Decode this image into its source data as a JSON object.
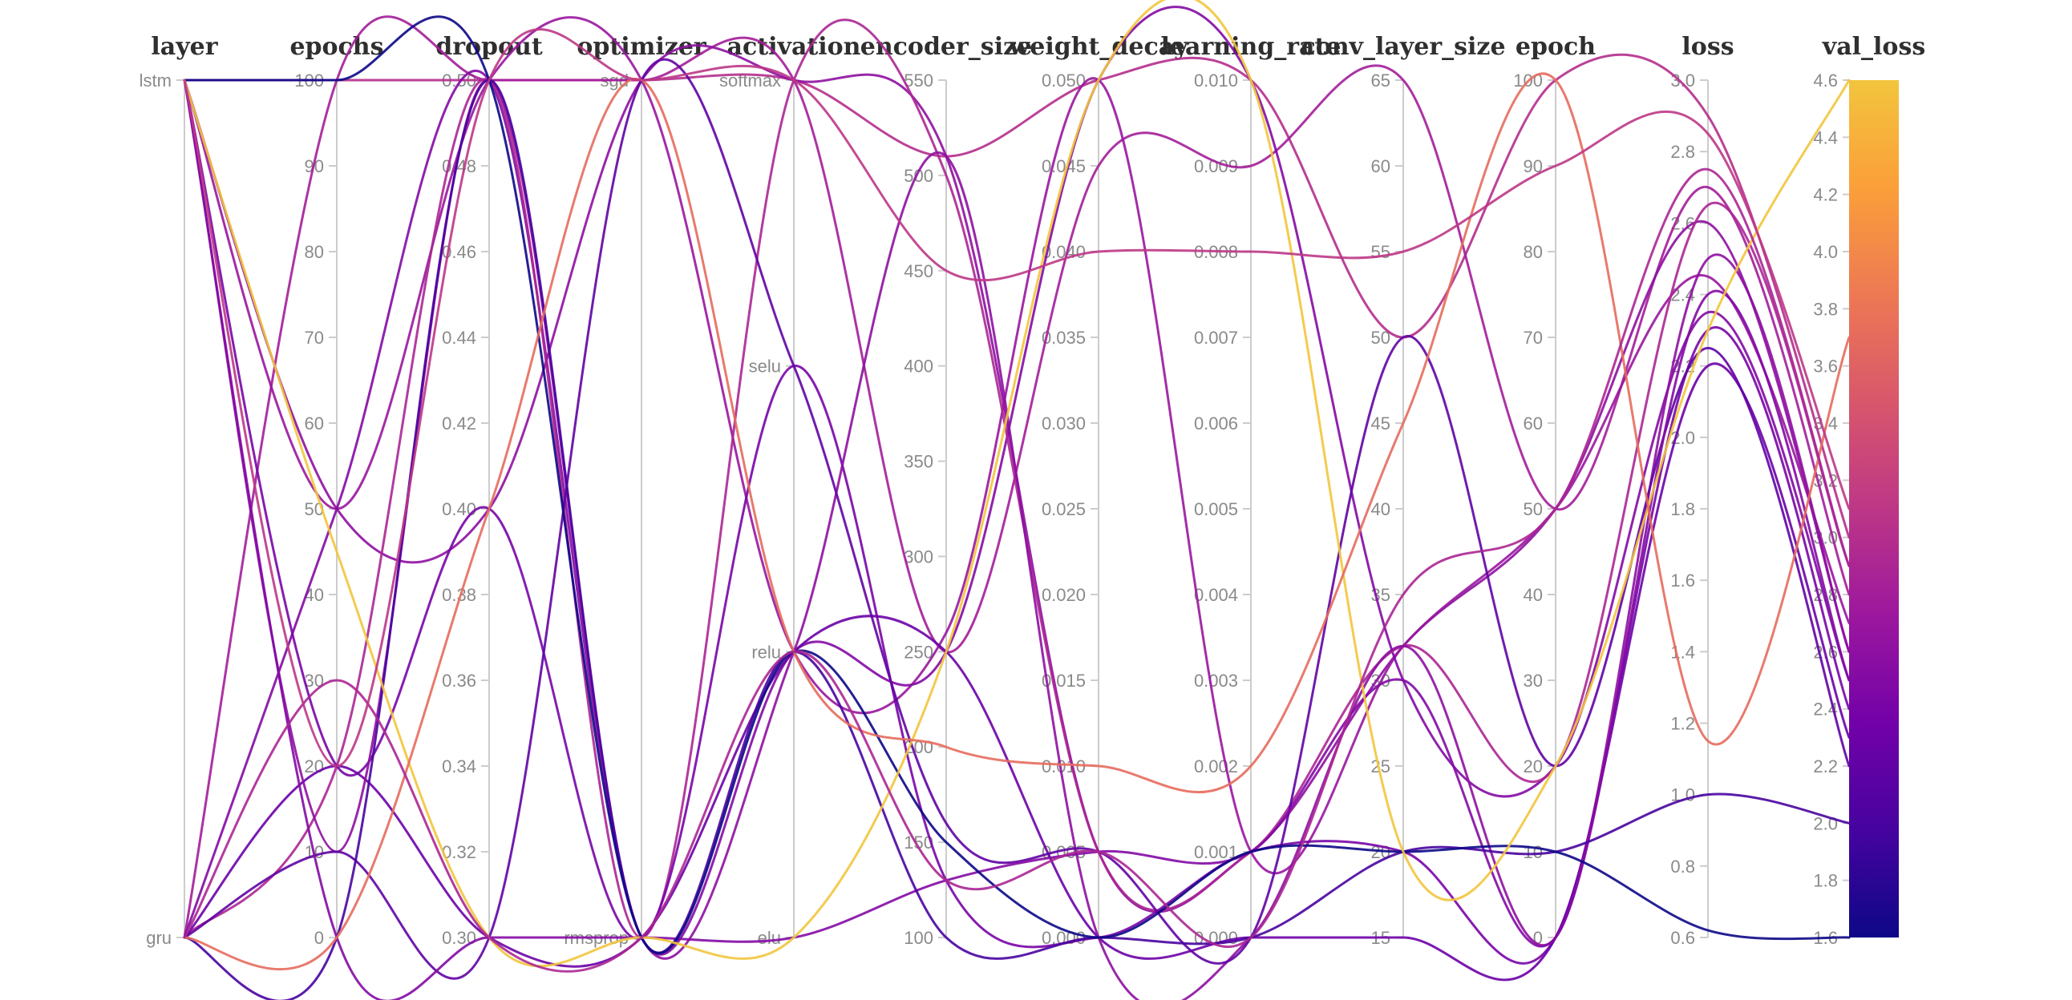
{
  "chart_data": {
    "type": "parallel-coordinates",
    "title": "",
    "axes": [
      {
        "name": "layer",
        "type": "categorical",
        "categories": [
          "lstm",
          "gru"
        ]
      },
      {
        "name": "epochs",
        "type": "numeric",
        "min": 0,
        "max": 100,
        "ticks": [
          "100",
          "90",
          "80",
          "70",
          "60",
          "50",
          "40",
          "30",
          "20",
          "10",
          "0"
        ]
      },
      {
        "name": "dropout",
        "type": "numeric",
        "min": 0.3,
        "max": 0.5,
        "ticks": [
          "0.50",
          "0.48",
          "0.46",
          "0.44",
          "0.42",
          "0.40",
          "0.38",
          "0.36",
          "0.34",
          "0.32",
          "0.30"
        ]
      },
      {
        "name": "optimizer",
        "type": "categorical",
        "categories": [
          "sgd",
          "rmsprop"
        ]
      },
      {
        "name": "activation",
        "type": "categorical",
        "categories": [
          "softmax",
          "selu",
          "relu",
          "elu"
        ]
      },
      {
        "name": "encoder_size",
        "type": "numeric",
        "min": 100,
        "max": 550,
        "ticks": [
          "550",
          "500",
          "450",
          "400",
          "350",
          "300",
          "250",
          "200",
          "150",
          "100"
        ]
      },
      {
        "name": "weight_decay",
        "type": "numeric",
        "min": 0.0,
        "max": 0.05,
        "ticks": [
          "0.050",
          "0.045",
          "0.040",
          "0.035",
          "0.030",
          "0.025",
          "0.020",
          "0.015",
          "0.010",
          "0.005",
          "0.000"
        ]
      },
      {
        "name": "learning_rate",
        "type": "numeric",
        "min": 0.0,
        "max": 0.01,
        "ticks": [
          "0.010",
          "0.009",
          "0.008",
          "0.007",
          "0.006",
          "0.005",
          "0.004",
          "0.003",
          "0.002",
          "0.001",
          "0.000"
        ]
      },
      {
        "name": "conv_layer_size",
        "type": "numeric",
        "min": 15,
        "max": 65,
        "ticks": [
          "65",
          "60",
          "55",
          "50",
          "45",
          "40",
          "35",
          "30",
          "25",
          "20",
          "15"
        ]
      },
      {
        "name": "epoch",
        "type": "numeric",
        "min": 0,
        "max": 100,
        "ticks": [
          "100",
          "90",
          "80",
          "70",
          "60",
          "50",
          "40",
          "30",
          "20",
          "10",
          "0"
        ]
      },
      {
        "name": "loss",
        "type": "numeric",
        "min": 0.6,
        "max": 3.0,
        "ticks": [
          "3.0",
          "2.8",
          "2.6",
          "2.4",
          "2.2",
          "2.0",
          "1.8",
          "1.6",
          "1.4",
          "1.2",
          "1.0",
          "0.8",
          "0.6"
        ]
      }
    ],
    "color_axis": {
      "name": "val_loss",
      "min": 1.6,
      "max": 4.6,
      "ticks": [
        "4.6",
        "4.4",
        "4.2",
        "4.0",
        "3.8",
        "3.6",
        "3.4",
        "3.2",
        "3.0",
        "2.8",
        "2.6",
        "2.4",
        "2.2",
        "2.0",
        "1.8",
        "1.6"
      ],
      "stops": [
        "#0d0887",
        "#46039f",
        "#7201a8",
        "#9c179e",
        "#bd3786",
        "#d8576b",
        "#ed7953",
        "#fb9f3a",
        "#f2c53d"
      ]
    },
    "runs": [
      {
        "layer": "lstm",
        "epochs": 100,
        "dropout": 0.5,
        "optimizer": "sgd",
        "activation": "softmax",
        "encoder_size": 510,
        "weight_decay": 0.05,
        "learning_rate": 0.01,
        "conv_layer_size": 50,
        "epoch": 100,
        "loss": 2.9,
        "val_loss": 3.0
      },
      {
        "layer": "gru",
        "epochs": 100,
        "dropout": 0.5,
        "optimizer": "sgd",
        "activation": "softmax",
        "encoder_size": 250,
        "weight_decay": 0.045,
        "learning_rate": 0.009,
        "conv_layer_size": 65,
        "epoch": 50,
        "loss": 2.7,
        "val_loss": 2.8
      },
      {
        "layer": "lstm",
        "epochs": 50,
        "dropout": 0.4,
        "optimizer": "sgd",
        "activation": "softmax",
        "encoder_size": 510,
        "weight_decay": 0.005,
        "learning_rate": 0.001,
        "conv_layer_size": 32,
        "epoch": 50,
        "loss": 2.6,
        "val_loss": 2.6
      },
      {
        "layer": "lstm",
        "epochs": 50,
        "dropout": 0.5,
        "optimizer": "sgd",
        "activation": "relu",
        "encoder_size": 260,
        "weight_decay": 0.05,
        "learning_rate": 0.001,
        "conv_layer_size": 32,
        "epoch": 50,
        "loss": 2.45,
        "val_loss": 2.7
      },
      {
        "layer": "gru",
        "epochs": 50,
        "dropout": 0.5,
        "optimizer": "rmsprop",
        "activation": "relu",
        "encoder_size": 250,
        "weight_decay": 0.05,
        "learning_rate": 0.01,
        "conv_layer_size": 30,
        "epoch": 20,
        "loss": 2.35,
        "val_loss": 2.5
      },
      {
        "layer": "gru",
        "epochs": 20,
        "dropout": 0.5,
        "optimizer": "rmsprop",
        "activation": "softmax",
        "encoder_size": 500,
        "weight_decay": 0.005,
        "learning_rate": 0.001,
        "conv_layer_size": 32,
        "epoch": 20,
        "loss": 2.65,
        "val_loss": 2.9
      },
      {
        "layer": "lstm",
        "epochs": 20,
        "dropout": 0.4,
        "optimizer": "rmsprop",
        "activation": "selu",
        "encoder_size": 130,
        "weight_decay": 0.0,
        "learning_rate": 0.001,
        "conv_layer_size": 20,
        "epoch": 0,
        "loss": 2.3,
        "val_loss": 2.4
      },
      {
        "layer": "gru",
        "epochs": 20,
        "dropout": 0.3,
        "optimizer": "rmsprop",
        "activation": "relu",
        "encoder_size": 250,
        "weight_decay": 0.0,
        "learning_rate": 0.0,
        "conv_layer_size": 15,
        "epoch": 0,
        "loss": 2.2,
        "val_loss": 2.3
      },
      {
        "layer": "lstm",
        "epochs": 10,
        "dropout": 0.5,
        "optimizer": "rmsprop",
        "activation": "relu",
        "encoder_size": 510,
        "weight_decay": 0.0,
        "learning_rate": 0.0,
        "conv_layer_size": 32,
        "epoch": 0,
        "loss": 2.5,
        "val_loss": 2.6
      },
      {
        "layer": "gru",
        "epochs": 10,
        "dropout": 0.3,
        "optimizer": "sgd",
        "activation": "selu",
        "encoder_size": 160,
        "weight_decay": 0.005,
        "learning_rate": 0.0,
        "conv_layer_size": 50,
        "epoch": 20,
        "loss": 2.25,
        "val_loss": 2.2
      },
      {
        "layer": "lstm",
        "epochs": 0,
        "dropout": 0.3,
        "optimizer": "rmsprop",
        "activation": "elu",
        "encoder_size": 130,
        "weight_decay": 0.005,
        "learning_rate": 0.001,
        "conv_layer_size": 30,
        "epoch": 0,
        "loss": 2.4,
        "val_loss": 2.5
      },
      {
        "layer": "gru",
        "epochs": 0,
        "dropout": 0.5,
        "optimizer": "rmsprop",
        "activation": "relu",
        "encoder_size": 100,
        "weight_decay": 0.0,
        "learning_rate": 0.0,
        "conv_layer_size": 20,
        "epoch": 10,
        "loss": 1.0,
        "val_loss": 2.0
      },
      {
        "layer": "lstm",
        "epochs": 100,
        "dropout": 0.5,
        "optimizer": "rmsprop",
        "activation": "relu",
        "encoder_size": 150,
        "weight_decay": 0.0,
        "learning_rate": 0.001,
        "conv_layer_size": 20,
        "epoch": 10,
        "loss": 0.62,
        "val_loss": 1.6
      },
      {
        "layer": "lstm",
        "epochs": 45,
        "dropout": 0.3,
        "optimizer": "rmsprop",
        "activation": "elu",
        "encoder_size": 250,
        "weight_decay": 0.05,
        "learning_rate": 0.01,
        "conv_layer_size": 20,
        "epoch": 20,
        "loss": 2.3,
        "val_loss": 4.6
      },
      {
        "layer": "gru",
        "epochs": 0,
        "dropout": 0.4,
        "optimizer": "sgd",
        "activation": "relu",
        "encoder_size": 200,
        "weight_decay": 0.01,
        "learning_rate": 0.002,
        "conv_layer_size": 45,
        "epoch": 100,
        "loss": 1.15,
        "val_loss": 3.7
      },
      {
        "layer": "gru",
        "epochs": 30,
        "dropout": 0.3,
        "optimizer": "rmsprop",
        "activation": "relu",
        "encoder_size": 130,
        "weight_decay": 0.005,
        "learning_rate": 0.0,
        "conv_layer_size": 35,
        "epoch": 50,
        "loss": 2.75,
        "val_loss": 2.9
      },
      {
        "layer": "lstm",
        "epochs": 20,
        "dropout": 0.5,
        "optimizer": "sgd",
        "activation": "softmax",
        "encoder_size": 450,
        "weight_decay": 0.04,
        "learning_rate": 0.008,
        "conv_layer_size": 55,
        "epoch": 90,
        "loss": 2.85,
        "val_loss": 3.1
      }
    ],
    "layout_hints": {
      "background": "#ffffff",
      "axis_line_color": "#cccccc",
      "tick_label_color": "#8a8a8a",
      "axis_title_color": "#2f2f2f",
      "legend_position": "right-colorbar"
    }
  }
}
